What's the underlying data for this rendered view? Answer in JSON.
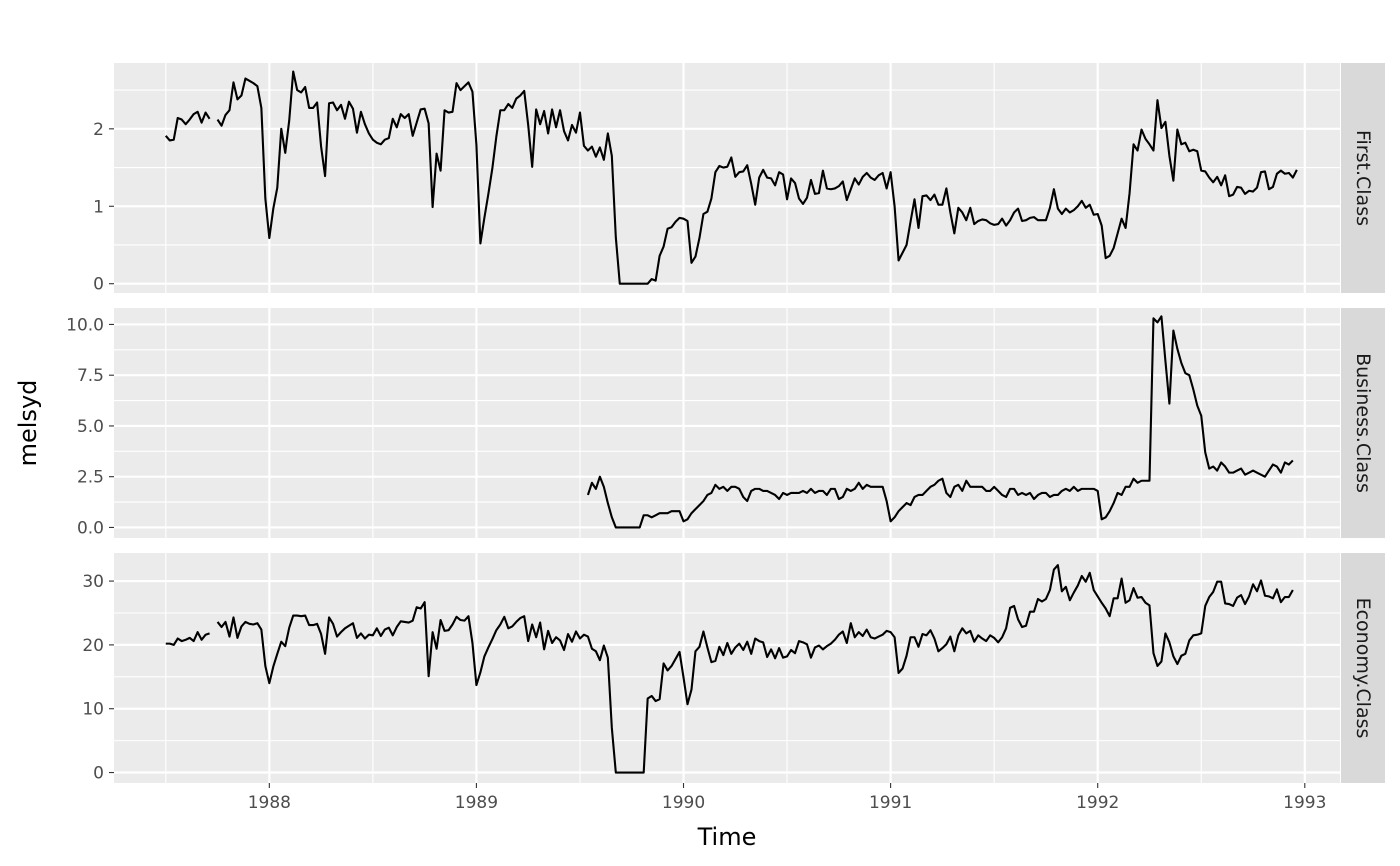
{
  "chart_data": {
    "type": "line",
    "title": "",
    "xlabel": "Time",
    "ylabel": "melsyd",
    "xlim": [
      1987.25,
      1993.17
    ],
    "x_ticks": [
      1988,
      1989,
      1990,
      1991,
      1992,
      1993
    ],
    "x_tick_labels": [
      "1988",
      "1989",
      "1990",
      "1991",
      "1992",
      "1993"
    ],
    "x_start": 1987.5,
    "x_step": 0.019231,
    "grid": true,
    "legend": "none",
    "colors": {
      "panel_bg": "#ebebeb",
      "strip_bg": "#d9d9d9",
      "grid": "#ffffff",
      "line": "#000000"
    },
    "series": [
      {
        "name": "First.Class",
        "ylim": [
          -0.12,
          2.85
        ],
        "y_ticks": [
          0,
          1,
          2
        ],
        "y_tick_labels": [
          "0",
          "1",
          "2"
        ],
        "values": [
          1.91,
          1.85,
          1.86,
          2.14,
          2.12,
          2.06,
          2.12,
          2.19,
          2.22,
          2.08,
          2.21,
          2.13,
          null,
          2.12,
          2.04,
          2.18,
          2.24,
          2.6,
          2.38,
          2.43,
          2.65,
          2.62,
          2.59,
          2.55,
          2.27,
          1.1,
          0.59,
          0.97,
          1.24,
          2.0,
          1.69,
          2.11,
          2.74,
          2.5,
          2.47,
          2.54,
          2.27,
          2.27,
          2.34,
          1.77,
          1.39,
          2.33,
          2.34,
          2.24,
          2.31,
          2.13,
          2.35,
          2.26,
          1.95,
          2.22,
          2.06,
          1.94,
          1.86,
          1.82,
          1.8,
          1.86,
          1.88,
          2.13,
          2.02,
          2.19,
          2.14,
          2.19,
          1.91,
          2.08,
          2.25,
          2.26,
          2.07,
          0.99,
          1.68,
          1.46,
          2.24,
          2.21,
          2.22,
          2.59,
          2.5,
          2.55,
          2.6,
          2.48,
          1.79,
          0.52,
          0.85,
          1.16,
          1.49,
          1.9,
          2.24,
          2.24,
          2.32,
          2.27,
          2.39,
          2.43,
          2.49,
          2.05,
          1.51,
          2.25,
          2.06,
          2.23,
          1.94,
          2.25,
          2.02,
          2.24,
          1.97,
          1.85,
          2.05,
          1.95,
          2.21,
          1.78,
          1.72,
          1.77,
          1.64,
          1.76,
          1.6,
          1.94,
          1.65,
          0.6,
          0.0,
          0.0,
          0.0,
          0.0,
          0.0,
          0.0,
          0.0,
          0.0,
          0.06,
          0.04,
          0.36,
          0.48,
          0.71,
          0.73,
          0.8,
          0.85,
          0.84,
          0.81,
          0.27,
          0.35,
          0.59,
          0.9,
          0.93,
          1.1,
          1.44,
          1.52,
          1.5,
          1.51,
          1.63,
          1.38,
          1.44,
          1.45,
          1.53,
          1.29,
          1.02,
          1.37,
          1.47,
          1.37,
          1.36,
          1.27,
          1.44,
          1.41,
          1.09,
          1.36,
          1.3,
          1.1,
          1.03,
          1.11,
          1.34,
          1.16,
          1.17,
          1.46,
          1.23,
          1.22,
          1.23,
          1.26,
          1.32,
          1.08,
          1.22,
          1.36,
          1.28,
          1.38,
          1.43,
          1.37,
          1.34,
          1.4,
          1.43,
          1.23,
          1.44,
          1.0,
          0.3,
          0.4,
          0.5,
          0.8,
          1.09,
          0.72,
          1.13,
          1.14,
          1.08,
          1.15,
          1.02,
          1.02,
          1.23,
          0.92,
          0.65,
          0.98,
          0.92,
          0.82,
          0.98,
          0.77,
          0.81,
          0.83,
          0.82,
          0.78,
          0.76,
          0.77,
          0.84,
          0.75,
          0.82,
          0.92,
          0.97,
          0.81,
          0.82,
          0.85,
          0.86,
          0.82,
          0.82,
          0.82,
          0.98,
          1.22,
          0.97,
          0.9,
          0.97,
          0.92,
          0.95,
          1.0,
          1.07,
          0.98,
          1.02,
          0.89,
          0.9,
          0.75,
          0.33,
          0.36,
          0.46,
          0.65,
          0.84,
          0.72,
          1.17,
          1.8,
          1.72,
          1.99,
          1.87,
          1.8,
          1.72,
          2.37,
          2.01,
          2.09,
          1.65,
          1.33,
          1.99,
          1.8,
          1.82,
          1.71,
          1.73,
          1.71,
          1.46,
          1.45,
          1.37,
          1.31,
          1.38,
          1.27,
          1.4,
          1.13,
          1.15,
          1.25,
          1.24,
          1.16,
          1.2,
          1.19,
          1.24,
          1.44,
          1.45,
          1.22,
          1.25,
          1.42,
          1.46,
          1.42,
          1.43,
          1.37,
          1.47
        ]
      },
      {
        "name": "Business.Class",
        "ylim": [
          -0.52,
          10.81
        ],
        "y_ticks": [
          0,
          2.5,
          5,
          7.5,
          10
        ],
        "y_tick_labels": [
          "0.0",
          "2.5",
          "5.0",
          "7.5",
          "10.0"
        ],
        "values": [
          null,
          null,
          null,
          null,
          null,
          null,
          null,
          null,
          null,
          null,
          null,
          null,
          null,
          null,
          null,
          null,
          null,
          null,
          null,
          null,
          null,
          null,
          null,
          null,
          null,
          null,
          null,
          null,
          null,
          null,
          null,
          null,
          null,
          null,
          null,
          null,
          null,
          null,
          null,
          null,
          null,
          null,
          null,
          null,
          null,
          null,
          null,
          null,
          null,
          null,
          null,
          null,
          null,
          null,
          null,
          null,
          null,
          null,
          null,
          null,
          null,
          null,
          null,
          null,
          null,
          null,
          null,
          null,
          null,
          null,
          null,
          null,
          null,
          null,
          null,
          null,
          null,
          null,
          null,
          null,
          null,
          null,
          null,
          null,
          null,
          null,
          null,
          null,
          null,
          null,
          null,
          null,
          null,
          null,
          null,
          null,
          null,
          null,
          null,
          null,
          null,
          null,
          null,
          null,
          null,
          null,
          1.6,
          2.2,
          1.9,
          2.5,
          2.0,
          1.2,
          0.5,
          0.0,
          0.0,
          0.0,
          0.0,
          0.0,
          0.0,
          0.0,
          0.6,
          0.6,
          0.5,
          0.6,
          0.7,
          0.7,
          0.7,
          0.8,
          0.8,
          0.8,
          0.3,
          0.4,
          0.7,
          0.9,
          1.1,
          1.3,
          1.6,
          1.7,
          2.1,
          1.9,
          2.0,
          1.8,
          2.0,
          2.0,
          1.9,
          1.5,
          1.3,
          1.8,
          1.9,
          1.9,
          1.8,
          1.8,
          1.7,
          1.6,
          1.4,
          1.7,
          1.6,
          1.7,
          1.7,
          1.7,
          1.8,
          1.7,
          1.9,
          1.7,
          1.8,
          1.8,
          1.6,
          1.9,
          1.9,
          1.4,
          1.5,
          1.9,
          1.8,
          1.9,
          2.2,
          1.9,
          2.1,
          2.0,
          2.0,
          2.0,
          2.0,
          1.3,
          0.3,
          0.5,
          0.8,
          1.0,
          1.2,
          1.1,
          1.5,
          1.6,
          1.6,
          1.8,
          2.0,
          2.1,
          2.3,
          2.4,
          1.7,
          1.5,
          2.0,
          2.1,
          1.8,
          2.3,
          2.0,
          2.0,
          2.0,
          2.0,
          1.8,
          1.8,
          2.0,
          1.8,
          1.6,
          1.5,
          1.9,
          1.9,
          1.6,
          1.7,
          1.6,
          1.7,
          1.4,
          1.6,
          1.7,
          1.7,
          1.5,
          1.6,
          1.6,
          1.8,
          1.9,
          1.8,
          2.0,
          1.8,
          1.9,
          1.9,
          1.9,
          1.9,
          1.8,
          0.4,
          0.5,
          0.8,
          1.2,
          1.7,
          1.6,
          2.0,
          2.0,
          2.4,
          2.2,
          2.3,
          2.3,
          2.3,
          10.3,
          10.1,
          10.4,
          8.2,
          6.1,
          9.7,
          8.8,
          8.1,
          7.6,
          7.5,
          6.8,
          6.0,
          5.5,
          3.7,
          2.9,
          3.0,
          2.8,
          3.2,
          3.0,
          2.7,
          2.7,
          2.8,
          2.9,
          2.6,
          2.7,
          2.8,
          2.7,
          2.6,
          2.5,
          2.8,
          3.1,
          3.0,
          2.7,
          3.2,
          3.1,
          3.3
        ]
      },
      {
        "name": "Economy.Class",
        "ylim": [
          -1.64,
          34.4
        ],
        "y_ticks": [
          0,
          10,
          20,
          30
        ],
        "y_tick_labels": [
          "0",
          "10",
          "20",
          "30"
        ],
        "values": [
          20.2,
          20.2,
          20.0,
          21.0,
          20.6,
          20.8,
          21.1,
          20.6,
          22.0,
          20.8,
          21.6,
          21.8,
          null,
          23.6,
          22.8,
          23.6,
          21.3,
          24.3,
          21.1,
          22.9,
          23.6,
          23.3,
          23.2,
          23.4,
          22.4,
          16.7,
          14.0,
          16.6,
          18.6,
          20.5,
          19.8,
          22.7,
          24.6,
          24.6,
          24.5,
          24.6,
          23.1,
          23.1,
          23.3,
          21.7,
          18.6,
          24.3,
          23.3,
          21.3,
          22.0,
          22.6,
          23.0,
          23.4,
          21.1,
          21.8,
          21.0,
          21.6,
          21.5,
          22.6,
          21.4,
          22.4,
          22.7,
          21.5,
          22.8,
          23.7,
          23.6,
          23.5,
          23.8,
          25.9,
          25.7,
          26.7,
          15.1,
          22.0,
          19.4,
          23.9,
          22.2,
          22.3,
          23.2,
          24.4,
          23.9,
          23.8,
          24.5,
          20.3,
          13.7,
          15.7,
          18.2,
          19.6,
          20.9,
          22.3,
          23.2,
          24.4,
          22.6,
          22.9,
          23.6,
          24.2,
          24.5,
          20.6,
          23.2,
          21.2,
          23.5,
          19.3,
          22.2,
          20.3,
          21.2,
          20.7,
          19.2,
          21.7,
          20.5,
          22.1,
          21.0,
          21.6,
          21.3,
          19.4,
          19.0,
          17.6,
          19.9,
          18.0,
          7.0,
          0.0,
          0.0,
          0.0,
          0.0,
          0.0,
          0.0,
          0.0,
          0.0,
          11.6,
          12.0,
          11.2,
          11.5,
          17.1,
          16.0,
          16.7,
          17.8,
          18.9,
          14.9,
          10.7,
          13.0,
          19.0,
          19.7,
          22.1,
          19.6,
          17.3,
          17.5,
          19.7,
          18.4,
          20.3,
          18.6,
          19.6,
          20.2,
          19.2,
          20.5,
          18.6,
          21.0,
          20.6,
          20.4,
          18.1,
          19.3,
          17.9,
          19.5,
          18.0,
          18.2,
          19.2,
          18.7,
          20.6,
          20.4,
          20.1,
          18.0,
          19.6,
          19.9,
          19.3,
          19.8,
          20.2,
          20.8,
          21.6,
          22.1,
          20.3,
          23.4,
          21.2,
          22.0,
          21.4,
          22.4,
          21.2,
          21.0,
          21.3,
          21.6,
          22.2,
          22.0,
          21.2,
          15.6,
          16.3,
          18.3,
          21.2,
          21.2,
          19.7,
          21.7,
          21.5,
          22.3,
          21.0,
          19.0,
          19.5,
          20.1,
          21.3,
          19.0,
          21.5,
          22.6,
          21.8,
          22.2,
          20.5,
          21.5,
          21.0,
          20.6,
          21.5,
          21.1,
          20.4,
          21.2,
          22.6,
          25.8,
          26.1,
          24.0,
          22.8,
          23.0,
          25.2,
          25.2,
          27.2,
          26.8,
          27.2,
          28.6,
          31.8,
          32.5,
          28.4,
          29.1,
          27.0,
          28.2,
          29.3,
          30.8,
          29.9,
          31.3,
          28.6,
          27.6,
          26.6,
          25.7,
          24.5,
          27.3,
          27.3,
          30.4,
          26.6,
          27.0,
          28.9,
          27.4,
          27.5,
          26.6,
          26.2,
          18.7,
          16.7,
          17.4,
          21.8,
          20.4,
          18.2,
          17.0,
          18.3,
          18.6,
          20.7,
          21.5,
          21.6,
          21.8,
          26.1,
          27.5,
          28.3,
          29.9,
          29.9,
          26.5,
          26.4,
          26.1,
          27.4,
          27.8,
          26.4,
          27.6,
          29.5,
          28.4,
          30.1,
          27.7,
          27.6,
          27.3,
          28.7,
          26.7,
          27.5,
          27.5,
          28.6
        ]
      }
    ]
  }
}
